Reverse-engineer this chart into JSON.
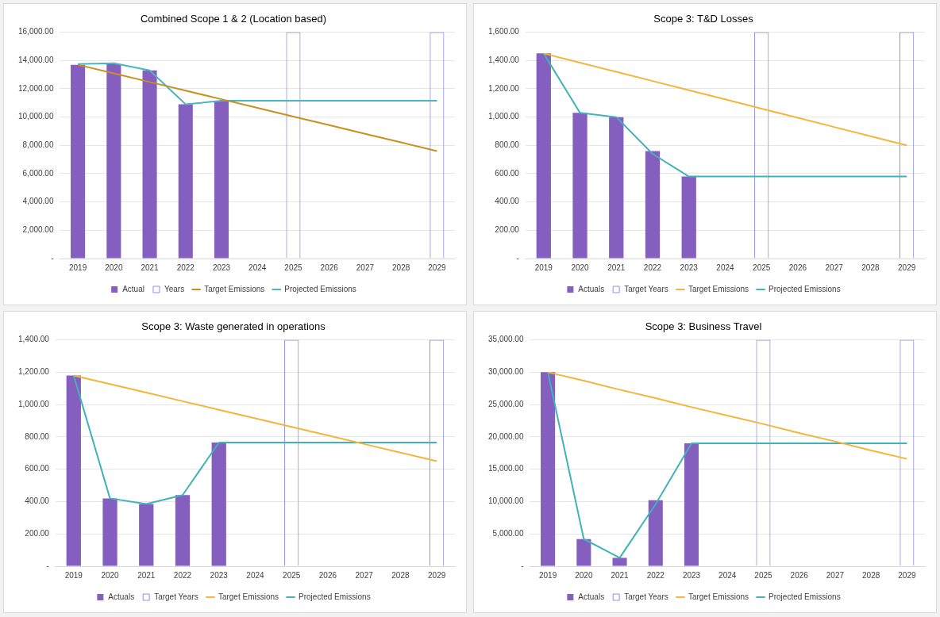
{
  "chart_data": [
    {
      "type": "bar",
      "title": "Combined Scope 1 & 2 (Location based)",
      "categories": [
        "2019",
        "2020",
        "2021",
        "2022",
        "2023",
        "2024",
        "2025",
        "2026",
        "2027",
        "2028",
        "2029"
      ],
      "series": [
        {
          "name": "Actual",
          "color": "#855fc0",
          "values": [
            13700,
            13750,
            13300,
            10900,
            11100,
            null,
            null,
            null,
            null,
            null,
            null
          ]
        },
        {
          "name": "Years",
          "type": "bar",
          "color": "#8f8fe6",
          "line_style": "dashed",
          "values": [
            null,
            null,
            null,
            null,
            null,
            null,
            16000,
            null,
            null,
            null,
            16000
          ]
        },
        {
          "name": "Target Emissions",
          "type": "line",
          "color": "#c8901c",
          "values": [
            13700,
            13090,
            12480,
            11870,
            11260,
            10650,
            10040,
            9430,
            8820,
            8210,
            7600
          ]
        },
        {
          "name": "Projected Emissions",
          "type": "line",
          "color": "#4bb5c1",
          "values": [
            13750,
            13800,
            13300,
            10900,
            11150,
            11150,
            11150,
            11150,
            11150,
            11150,
            11150
          ]
        }
      ],
      "ylim": [
        0,
        16000
      ],
      "yticks": [
        {
          "value": 0,
          "label": "-"
        },
        {
          "value": 2000,
          "label": "2,000.00"
        },
        {
          "value": 4000,
          "label": "4,000.00"
        },
        {
          "value": 6000,
          "label": "6,000.00"
        },
        {
          "value": 8000,
          "label": "8,000.00"
        },
        {
          "value": 10000,
          "label": "10,000.00"
        },
        {
          "value": 12000,
          "label": "12,000.00"
        },
        {
          "value": 14000,
          "label": "14,000.00"
        },
        {
          "value": 16000,
          "label": "16,000.00"
        }
      ],
      "grid": "y",
      "legend": "bottom"
    },
    {
      "type": "bar",
      "title": "Scope 3: T&D Losses",
      "categories": [
        "2019",
        "2020",
        "2021",
        "2022",
        "2023",
        "2024",
        "2025",
        "2026",
        "2027",
        "2028",
        "2029"
      ],
      "series": [
        {
          "name": "Actuals",
          "color": "#855fc0",
          "values": [
            1450,
            1030,
            1000,
            760,
            580,
            null,
            null,
            null,
            null,
            null,
            null
          ]
        },
        {
          "name": "Target Years",
          "type": "bar",
          "color": "#8f8fe6",
          "line_style": "dashed",
          "values": [
            null,
            null,
            null,
            null,
            null,
            null,
            1600,
            null,
            null,
            null,
            1600
          ]
        },
        {
          "name": "Target Emissions",
          "type": "line",
          "color": "#f5b43a",
          "values": [
            1450,
            1385,
            1320,
            1255,
            1190,
            1125,
            1060,
            995,
            930,
            865,
            800
          ]
        },
        {
          "name": "Projected Emissions",
          "type": "line",
          "color": "#3fb3b8",
          "values": [
            1450,
            1030,
            1000,
            740,
            580,
            580,
            580,
            580,
            580,
            580,
            580
          ]
        }
      ],
      "ylim": [
        0,
        1600
      ],
      "yticks": [
        {
          "value": 0,
          "label": "-"
        },
        {
          "value": 200,
          "label": "200.00"
        },
        {
          "value": 400,
          "label": "400.00"
        },
        {
          "value": 600,
          "label": "600.00"
        },
        {
          "value": 800,
          "label": "800.00"
        },
        {
          "value": 1000,
          "label": "1,000.00"
        },
        {
          "value": 1200,
          "label": "1,200.00"
        },
        {
          "value": 1400,
          "label": "1,400.00"
        },
        {
          "value": 1600,
          "label": "1,600.00"
        }
      ],
      "grid": "y",
      "legend": "bottom"
    },
    {
      "type": "bar",
      "title": "Scope 3: Waste generated in operations",
      "categories": [
        "2019",
        "2020",
        "2021",
        "2022",
        "2023",
        "2024",
        "2025",
        "2026",
        "2027",
        "2028",
        "2029"
      ],
      "series": [
        {
          "name": "Actuals",
          "color": "#855fc0",
          "values": [
            1180,
            420,
            385,
            440,
            765,
            null,
            null,
            null,
            null,
            null,
            null
          ]
        },
        {
          "name": "Target Years",
          "type": "bar",
          "color": "#8f8fe6",
          "line_style": "dashed",
          "values": [
            null,
            null,
            null,
            null,
            null,
            null,
            1400,
            null,
            null,
            null,
            1400
          ]
        },
        {
          "name": "Target Emissions",
          "type": "line",
          "color": "#f5b43a",
          "values": [
            1180,
            1127,
            1074,
            1021,
            968,
            915,
            862,
            809,
            756,
            703,
            650
          ]
        },
        {
          "name": "Projected Emissions",
          "type": "line",
          "color": "#3fb3b8",
          "values": [
            1180,
            420,
            385,
            440,
            765,
            765,
            765,
            765,
            765,
            765,
            765
          ]
        }
      ],
      "ylim": [
        0,
        1400
      ],
      "yticks": [
        {
          "value": 0,
          "label": "-"
        },
        {
          "value": 200,
          "label": "200.00"
        },
        {
          "value": 400,
          "label": "400.00"
        },
        {
          "value": 600,
          "label": "600.00"
        },
        {
          "value": 800,
          "label": "800.00"
        },
        {
          "value": 1000,
          "label": "1,000.00"
        },
        {
          "value": 1200,
          "label": "1,200.00"
        },
        {
          "value": 1400,
          "label": "1,400.00"
        }
      ],
      "grid": "y",
      "legend": "bottom"
    },
    {
      "type": "bar",
      "title": "Scope 3: Business Travel",
      "categories": [
        "2019",
        "2020",
        "2021",
        "2022",
        "2023",
        "2024",
        "2025",
        "2026",
        "2027",
        "2028",
        "2029"
      ],
      "series": [
        {
          "name": "Actuals",
          "color": "#855fc0",
          "values": [
            30000,
            4200,
            1300,
            10200,
            19000,
            null,
            null,
            null,
            null,
            null,
            null
          ]
        },
        {
          "name": "Target Years",
          "type": "bar",
          "color": "#8f8fe6",
          "line_style": "dashed",
          "values": [
            null,
            null,
            null,
            null,
            null,
            null,
            35000,
            null,
            null,
            null,
            35000
          ]
        },
        {
          "name": "Target Emissions",
          "type": "line",
          "color": "#f5b43a",
          "values": [
            30000,
            28700,
            27300,
            26000,
            24600,
            23300,
            22000,
            20600,
            19300,
            17900,
            16600
          ]
        },
        {
          "name": "Projected Emissions",
          "type": "line",
          "color": "#3fb3b8",
          "values": [
            30000,
            4200,
            1300,
            9600,
            19000,
            19000,
            19000,
            19000,
            19000,
            19000,
            19000
          ]
        }
      ],
      "ylim": [
        0,
        35000
      ],
      "yticks": [
        {
          "value": 0,
          "label": "-"
        },
        {
          "value": 5000,
          "label": "5,000.00"
        },
        {
          "value": 10000,
          "label": "10,000.00"
        },
        {
          "value": 15000,
          "label": "15,000.00"
        },
        {
          "value": 20000,
          "label": "20,000.00"
        },
        {
          "value": 25000,
          "label": "25,000.00"
        },
        {
          "value": 30000,
          "label": "30,000.00"
        },
        {
          "value": 35000,
          "label": "35,000.00"
        }
      ],
      "grid": "y",
      "legend": "bottom"
    }
  ]
}
